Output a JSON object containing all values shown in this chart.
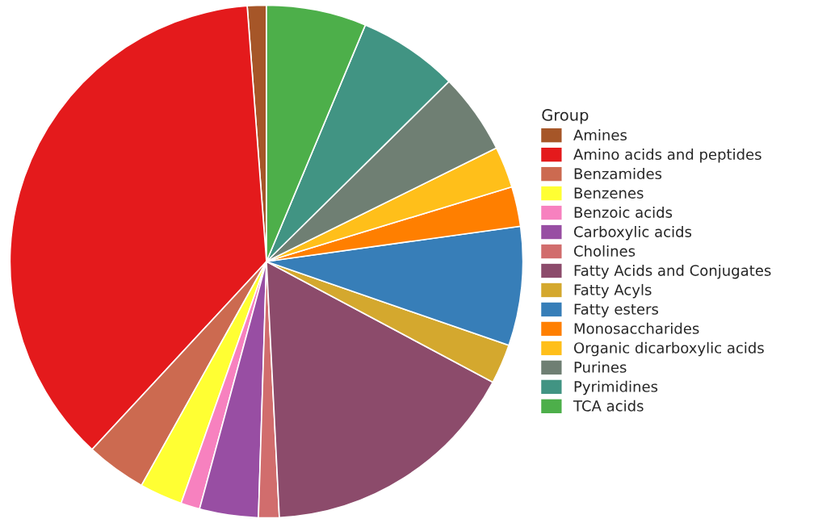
{
  "chart_data": {
    "type": "pie",
    "legend_title": "Group",
    "legend": "right",
    "categories": [
      "Amines",
      "Amino acids and peptides",
      "Benzamides",
      "Benzenes",
      "Benzoic acids",
      "Carboxylic acids",
      "Cholines",
      "Fatty Acids and Conjugates",
      "Fatty Acyls",
      "Fatty esters",
      "Monosaccharides",
      "Organic dicarboxylic acids",
      "Purines",
      "Pyrimidines",
      "TCA acids"
    ],
    "values": [
      1.2,
      36.9,
      3.8,
      2.7,
      1.2,
      3.7,
      1.3,
      16.4,
      2.5,
      7.5,
      2.5,
      2.6,
      5.1,
      6.3,
      6.3
    ],
    "colors": [
      "#a65628",
      "#e41a1c",
      "#cc6a50",
      "#ffff33",
      "#f781bf",
      "#984ea3",
      "#d16d6d",
      "#8c4b6b",
      "#d4a82e",
      "#377eb8",
      "#ff7f00",
      "#ffbf1a",
      "#6f7f73",
      "#419483",
      "#4daf4a"
    ]
  }
}
